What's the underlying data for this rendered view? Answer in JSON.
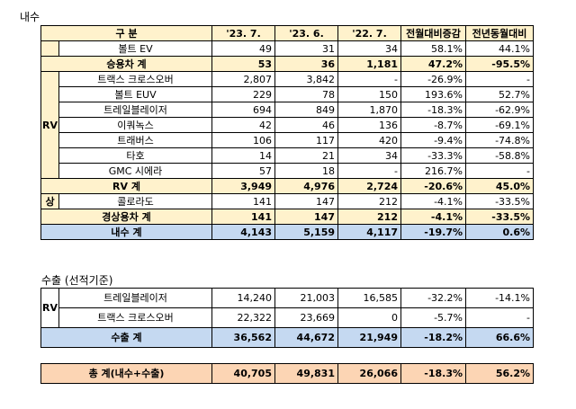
{
  "domestic": {
    "title": "내수",
    "header": [
      "구 분",
      "'23. 7.",
      "'23. 6.",
      "'22. 7.",
      "전월대비증감",
      "전년동월대비"
    ],
    "groups": [
      "RV",
      "상"
    ],
    "rows": [
      [
        "볼트 EV",
        "49",
        "31",
        "34",
        "58.1%",
        "44.1%"
      ],
      [
        "승용차 계",
        "53",
        "36",
        "1,181",
        "47.2%",
        "-95.5%"
      ],
      [
        "트랙스 크로스오버",
        "2,807",
        "3,842",
        "-",
        "-26.9%",
        "-"
      ],
      [
        "볼트 EUV",
        "229",
        "78",
        "150",
        "193.6%",
        "52.7%"
      ],
      [
        "트레일블레이저",
        "694",
        "849",
        "1,870",
        "-18.3%",
        "-62.9%"
      ],
      [
        "이쿼녹스",
        "42",
        "46",
        "136",
        "-8.7%",
        "-69.1%"
      ],
      [
        "트래버스",
        "106",
        "117",
        "420",
        "-9.4%",
        "-74.8%"
      ],
      [
        "타호",
        "14",
        "21",
        "34",
        "-33.3%",
        "-58.8%"
      ],
      [
        "GMC 시에라",
        "57",
        "18",
        "-",
        "216.7%",
        "-"
      ],
      [
        "RV 계",
        "3,949",
        "4,976",
        "2,724",
        "-20.6%",
        "45.0%"
      ],
      [
        "콜로라도",
        "141",
        "147",
        "212",
        "-4.1%",
        "-33.5%"
      ],
      [
        "경상용차 계",
        "141",
        "147",
        "212",
        "-4.1%",
        "-33.5%"
      ],
      [
        "내수 계",
        "4,143",
        "5,159",
        "4,117",
        "-19.7%",
        "0.6%"
      ]
    ]
  },
  "export": {
    "title": "수출 (선적기준)",
    "group": "RV",
    "rows": [
      [
        "트레일블레이저",
        "14,240",
        "21,003",
        "16,585",
        "-32.2%",
        "-14.1%"
      ],
      [
        "트랙스 크로스오버",
        "22,322",
        "23,669",
        "0",
        "-5.7%",
        "-"
      ],
      [
        "수출 계",
        "36,562",
        "44,672",
        "21,949",
        "-18.2%",
        "66.6%"
      ]
    ]
  },
  "total": [
    "총 계(내수+수출)",
    "40,705",
    "49,831",
    "26,066",
    "-18.3%",
    "56.2%"
  ]
}
